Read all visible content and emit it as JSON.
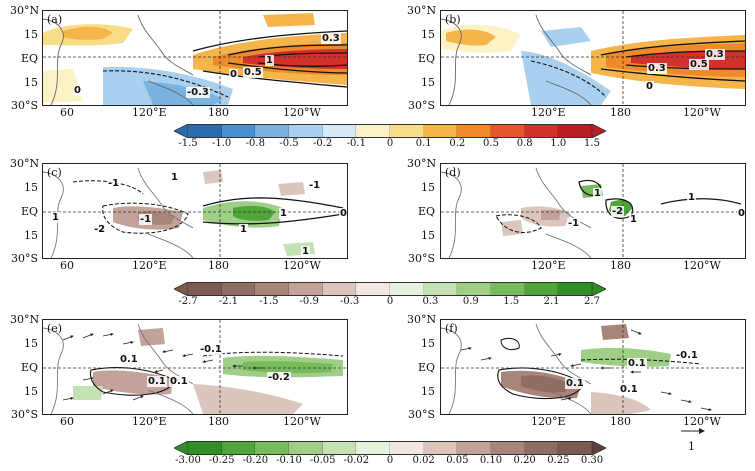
{
  "lat_labels": [
    "30°N",
    "15",
    "EQ",
    "15",
    "30°S"
  ],
  "lon_labels": [
    "60",
    "120°E",
    "180",
    "120°W"
  ],
  "panels": [
    {
      "tag": "(a)",
      "contour_labels": [
        "0.3",
        "0.5",
        "1",
        "0",
        "0",
        "-0.3"
      ]
    },
    {
      "tag": "(b)",
      "contour_labels": [
        "0.3",
        "0.5",
        "0.3",
        "0"
      ]
    },
    {
      "tag": "(c)",
      "contour_labels": [
        "-1",
        "1",
        "-1",
        "1",
        "-2",
        "-1",
        "1",
        "1",
        "0",
        "1"
      ]
    },
    {
      "tag": "(d)",
      "contour_labels": [
        "1",
        "-2",
        "1",
        "-1",
        "1",
        "0"
      ]
    },
    {
      "tag": "(e)",
      "contour_labels": [
        "-0.1",
        "0.1",
        "0.1",
        "0.1",
        "-0.2"
      ]
    },
    {
      "tag": "(f)",
      "contour_labels": [
        "-0.1",
        "0.1",
        "0.1",
        "0.1"
      ]
    }
  ],
  "colorbars": [
    {
      "ticks": [
        "-1.5",
        "-1.0",
        "-0.8",
        "-0.5",
        "-0.2",
        "-0.1",
        "0",
        "0.1",
        "0.2",
        "0.5",
        "0.8",
        "1.0",
        "1.5"
      ],
      "colors": [
        "#2b6cb0",
        "#4a8fd0",
        "#7ab3e0",
        "#a9d0ef",
        "#d6e9f7",
        "#fbf2c6",
        "#f8dc86",
        "#f5b54a",
        "#ee8a2c",
        "#e4572b",
        "#d2302a",
        "#b81e25"
      ]
    },
    {
      "ticks": [
        "-2.7",
        "-2.1",
        "-1.5",
        "-0.9",
        "-0.3",
        "0",
        "0.3",
        "0.9",
        "1.5",
        "2.1",
        "2.7"
      ],
      "colors": [
        "#7a5a52",
        "#8f6d63",
        "#a88479",
        "#c2a299",
        "#dcc5bd",
        "#f2e7e2",
        "#e7f2de",
        "#c5e2b2",
        "#9fcf86",
        "#77bb5c",
        "#4fa53a",
        "#2f8f24"
      ]
    },
    {
      "ticks": [
        "-3.00",
        "-0.25",
        "-0.20",
        "-0.10",
        "-0.05",
        "-0.02",
        "0",
        "0.02",
        "0.05",
        "0.10",
        "0.20",
        "0.25",
        "0.30"
      ],
      "colors": [
        "#2f8f24",
        "#4fa53a",
        "#77bb5c",
        "#9fcf86",
        "#c5e2b2",
        "#e7f2de",
        "#f2e7e2",
        "#dcc5bd",
        "#c2a299",
        "#a88479",
        "#8f6d63",
        "#7a5a52"
      ]
    }
  ],
  "vector_scale_label": "1"
}
